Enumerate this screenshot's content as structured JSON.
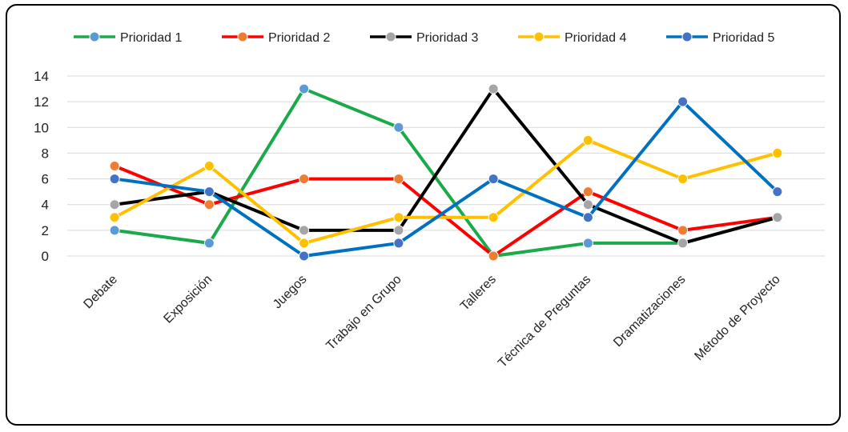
{
  "chart_data": {
    "type": "line",
    "title": "",
    "xlabel": "",
    "ylabel": "",
    "categories": [
      "Debate",
      "Exposición",
      "Juegos",
      "Trabajo en Grupo",
      "Talleres",
      "Técnica de Preguntas",
      "Dramatizaciones",
      "Método de Proyecto"
    ],
    "ylim": [
      0,
      14
    ],
    "yticks": [
      0,
      2,
      4,
      6,
      8,
      10,
      12,
      14
    ],
    "grid": "horizontal",
    "legend": "top",
    "series": [
      {
        "name": "Prioridad 1",
        "line_color": "#1aaa4a",
        "marker_color": "#5b9bd5",
        "values": [
          2,
          1,
          13,
          10,
          0,
          1,
          1,
          3
        ]
      },
      {
        "name": "Prioridad 2",
        "line_color": "#ff0000",
        "marker_color": "#ed7d31",
        "values": [
          7,
          4,
          6,
          6,
          0,
          5,
          2,
          3
        ]
      },
      {
        "name": "Prioridad 3",
        "line_color": "#000000",
        "marker_color": "#a5a5a5",
        "values": [
          4,
          5,
          2,
          2,
          13,
          4,
          1,
          3
        ]
      },
      {
        "name": "Prioridad 4",
        "line_color": "#ffc000",
        "marker_color": "#ffc000",
        "values": [
          3,
          7,
          1,
          3,
          3,
          9,
          6,
          8
        ]
      },
      {
        "name": "Prioridad 5",
        "line_color": "#0070c0",
        "marker_color": "#4472c4",
        "values": [
          6,
          5,
          0,
          1,
          6,
          3,
          12,
          5
        ]
      }
    ]
  }
}
